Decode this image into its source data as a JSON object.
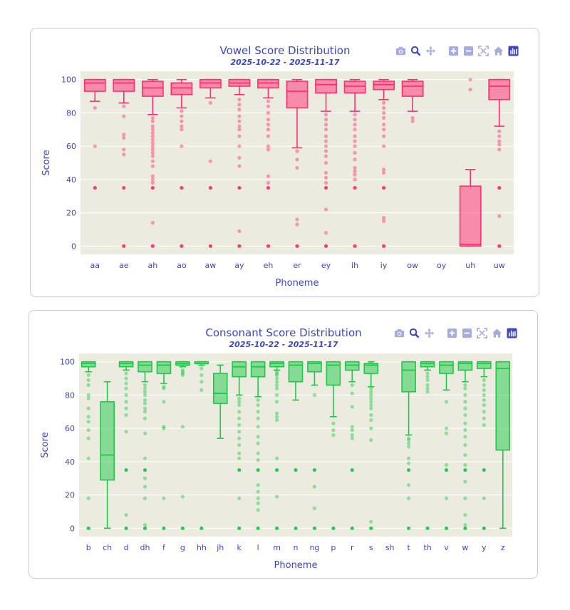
{
  "colors": {
    "vowel": "#ff2e73",
    "consonant": "#1ec94a",
    "text": "#3e46c2",
    "plot_bg": "#ecebdf",
    "grid": "#ffffff",
    "card_border": "#c9c6ee"
  },
  "modebar": {
    "icons": [
      "camera-icon",
      "zoom-icon",
      "pan-icon",
      "zoom-in-icon",
      "zoom-out-icon",
      "autoscale-icon",
      "home-icon",
      "plotly-logo-icon"
    ]
  },
  "vowel_chart": {
    "title": "Vowel Score Distribution",
    "subtitle": "2025-10-22 - 2025-11-17"
  },
  "consonant_chart": {
    "title": "Consonant Score Distribution",
    "subtitle": "2025-10-22 - 2025-11-17"
  },
  "chart_data": [
    {
      "type": "box",
      "title": "Vowel Score Distribution",
      "subtitle": "2025-10-22 - 2025-11-17",
      "xlabel": "Phoneme",
      "ylabel": "Score",
      "ylim": [
        -5,
        105
      ],
      "yticks": [
        0,
        20,
        40,
        60,
        80,
        100
      ],
      "grid": true,
      "color": "#ff2e73",
      "categories": [
        "aa",
        "ae",
        "ah",
        "ao",
        "aw",
        "ay",
        "eh",
        "er",
        "ey",
        "ih",
        "iy",
        "ow",
        "oy",
        "uh",
        "uw"
      ],
      "boxes": [
        {
          "x": "aa",
          "min": 87,
          "q1": 93,
          "median": 98,
          "q3": 100,
          "max": 100,
          "outliers": [
            83,
            60,
            35
          ]
        },
        {
          "x": "ae",
          "min": 86,
          "q1": 93,
          "median": 98,
          "q3": 100,
          "max": 100,
          "outliers": [
            84,
            78,
            67,
            65,
            58,
            55,
            35,
            0
          ]
        },
        {
          "x": "ah",
          "min": 79,
          "q1": 90,
          "median": 95,
          "q3": 99,
          "max": 100,
          "outliers": [
            77,
            75,
            72,
            70,
            68,
            66,
            64,
            62,
            60,
            58,
            56,
            54,
            51,
            48,
            42,
            40,
            38,
            35,
            14,
            0
          ]
        },
        {
          "x": "ao",
          "min": 83,
          "q1": 91,
          "median": 95,
          "q3": 98,
          "max": 100,
          "outliers": [
            81,
            78,
            75,
            72,
            70,
            60,
            35,
            0
          ]
        },
        {
          "x": "aw",
          "min": 89,
          "q1": 95,
          "median": 98,
          "q3": 100,
          "max": 100,
          "outliers": [
            86,
            51,
            35,
            0
          ]
        },
        {
          "x": "ay",
          "min": 91,
          "q1": 96,
          "median": 98,
          "q3": 100,
          "max": 100,
          "outliers": [
            88,
            85,
            82,
            78,
            75,
            72,
            70,
            66,
            60,
            53,
            48,
            35,
            9,
            0
          ]
        },
        {
          "x": "eh",
          "min": 89,
          "q1": 95,
          "median": 98,
          "q3": 100,
          "max": 100,
          "outliers": [
            87,
            84,
            80,
            76,
            73,
            70,
            66,
            60,
            58,
            42,
            38,
            35,
            0
          ]
        },
        {
          "x": "er",
          "min": 59,
          "q1": 83,
          "median": 93,
          "q3": 99,
          "max": 100,
          "outliers": [
            57,
            52,
            47,
            16,
            13,
            0
          ]
        },
        {
          "x": "ey",
          "min": 81,
          "q1": 92,
          "median": 97,
          "q3": 100,
          "max": 100,
          "outliers": [
            79,
            76,
            73,
            70,
            66,
            63,
            60,
            57,
            54,
            50,
            44,
            41,
            38,
            35,
            22,
            8,
            0
          ]
        },
        {
          "x": "ih",
          "min": 81,
          "q1": 92,
          "median": 96,
          "q3": 99,
          "max": 100,
          "outliers": [
            79,
            76,
            73,
            70,
            66,
            63,
            60,
            56,
            52,
            47,
            45,
            43,
            40,
            35,
            0
          ]
        },
        {
          "x": "iy",
          "min": 88,
          "q1": 94,
          "median": 97,
          "q3": 99,
          "max": 100,
          "outliers": [
            86,
            83,
            80,
            77,
            73,
            70,
            66,
            60,
            46,
            44,
            35,
            17,
            15,
            0
          ]
        },
        {
          "x": "ow",
          "min": 81,
          "q1": 90,
          "median": 96,
          "q3": 99,
          "max": 100,
          "outliers": [
            77,
            75
          ]
        },
        {
          "x": "oy",
          "min": null,
          "q1": null,
          "median": null,
          "q3": null,
          "max": null,
          "outliers": []
        },
        {
          "x": "uh",
          "min": 0,
          "q1": 0,
          "median": 1,
          "q3": 36,
          "max": 46,
          "outliers": [
            100,
            94
          ]
        },
        {
          "x": "uw",
          "min": 72,
          "q1": 88,
          "median": 96,
          "q3": 100,
          "max": 100,
          "outliers": [
            69,
            66,
            63,
            61,
            58,
            35,
            18,
            0
          ]
        }
      ]
    },
    {
      "type": "box",
      "title": "Consonant Score Distribution",
      "subtitle": "2025-10-22 - 2025-11-17",
      "xlabel": "Phoneme",
      "ylabel": "Score",
      "ylim": [
        -5,
        105
      ],
      "yticks": [
        0,
        20,
        40,
        60,
        80,
        100
      ],
      "grid": true,
      "color": "#1ec94a",
      "categories": [
        "b",
        "ch",
        "d",
        "dh",
        "f",
        "g",
        "hh",
        "jh",
        "k",
        "l",
        "m",
        "n",
        "ng",
        "p",
        "r",
        "s",
        "sh",
        "t",
        "th",
        "v",
        "w",
        "y",
        "z"
      ],
      "boxes": [
        {
          "x": "b",
          "min": 94,
          "q1": 97,
          "median": 99,
          "q3": 100,
          "max": 100,
          "outliers": [
            92,
            89,
            86,
            80,
            78,
            72,
            67,
            64,
            59,
            54,
            42,
            18,
            0
          ]
        },
        {
          "x": "ch",
          "min": 0,
          "q1": 29,
          "median": 44,
          "q3": 76,
          "max": 88,
          "outliers": []
        },
        {
          "x": "d",
          "min": 95,
          "q1": 97,
          "median": 99,
          "q3": 100,
          "max": 100,
          "outliers": [
            93,
            90,
            87,
            84,
            80,
            76,
            72,
            68,
            58,
            35,
            8,
            0
          ]
        },
        {
          "x": "dh",
          "min": 88,
          "q1": 94,
          "median": 98,
          "q3": 100,
          "max": 100,
          "outliers": [
            86,
            84,
            82,
            80,
            77,
            75,
            72,
            70,
            66,
            57,
            42,
            35,
            30,
            25,
            18,
            2,
            0
          ]
        },
        {
          "x": "f",
          "min": 87,
          "q1": 93,
          "median": 98,
          "q3": 100,
          "max": 100,
          "outliers": [
            85,
            84,
            76,
            61,
            60,
            18,
            0
          ]
        },
        {
          "x": "g",
          "min": 97,
          "q1": 98,
          "median": 99,
          "q3": 100,
          "max": 100,
          "outliers": [
            95,
            94,
            93,
            92,
            61,
            19,
            0
          ]
        },
        {
          "x": "hh",
          "min": 98,
          "q1": 99,
          "median": 99,
          "q3": 100,
          "max": 100,
          "outliers": [
            96,
            92,
            88,
            83,
            0
          ]
        },
        {
          "x": "jh",
          "min": 54,
          "q1": 75,
          "median": 81,
          "q3": 93,
          "max": 98,
          "outliers": []
        },
        {
          "x": "k",
          "min": 80,
          "q1": 91,
          "median": 97,
          "q3": 100,
          "max": 100,
          "outliers": [
            78,
            76,
            74,
            70,
            66,
            62,
            58,
            54,
            50,
            45,
            42,
            35,
            18,
            0
          ]
        },
        {
          "x": "l",
          "min": 79,
          "q1": 91,
          "median": 97,
          "q3": 100,
          "max": 100,
          "outliers": [
            77,
            74,
            70,
            66,
            61,
            55,
            51,
            45,
            41,
            35,
            26,
            22,
            18,
            15,
            11,
            0
          ]
        },
        {
          "x": "m",
          "min": 95,
          "q1": 97,
          "median": 99,
          "q3": 100,
          "max": 100,
          "outliers": [
            94,
            93,
            92,
            90,
            88,
            86,
            84,
            80,
            76,
            69,
            67,
            65,
            42,
            35,
            19,
            0
          ]
        },
        {
          "x": "n",
          "min": 77,
          "q1": 88,
          "median": 98,
          "q3": 100,
          "max": 100,
          "outliers": [
            35,
            0
          ]
        },
        {
          "x": "ng",
          "min": 86,
          "q1": 94,
          "median": 99,
          "q3": 100,
          "max": 100,
          "outliers": [
            80,
            35,
            25,
            12,
            0
          ]
        },
        {
          "x": "p",
          "min": 67,
          "q1": 86,
          "median": 98,
          "q3": 100,
          "max": 100,
          "outliers": [
            63,
            59,
            56,
            0
          ]
        },
        {
          "x": "r",
          "min": 88,
          "q1": 95,
          "median": 98,
          "q3": 100,
          "max": 100,
          "outliers": [
            86,
            81,
            73,
            61,
            59,
            56,
            54,
            35,
            0
          ]
        },
        {
          "x": "s",
          "min": 85,
          "q1": 93,
          "median": 98,
          "q3": 99,
          "max": 100,
          "outliers": [
            84,
            82,
            80,
            78,
            76,
            74,
            72,
            68,
            65,
            60,
            53,
            4,
            0
          ]
        },
        {
          "x": "sh",
          "min": null,
          "q1": null,
          "median": null,
          "q3": null,
          "max": null,
          "outliers": []
        },
        {
          "x": "t",
          "min": 56,
          "q1": 82,
          "median": 95,
          "q3": 100,
          "max": 100,
          "outliers": [
            54,
            53,
            51,
            49,
            42,
            39,
            35,
            26,
            18,
            0
          ]
        },
        {
          "x": "th",
          "min": 95,
          "q1": 97,
          "median": 99,
          "q3": 100,
          "max": 100,
          "outliers": [
            93,
            91,
            89,
            86,
            84,
            82,
            0
          ]
        },
        {
          "x": "v",
          "min": 83,
          "q1": 93,
          "median": 98,
          "q3": 100,
          "max": 100,
          "outliers": [
            76,
            60,
            57,
            38,
            35,
            18,
            0
          ]
        },
        {
          "x": "w",
          "min": 88,
          "q1": 95,
          "median": 99,
          "q3": 100,
          "max": 100,
          "outliers": [
            86,
            84,
            80,
            76,
            72,
            68,
            63,
            59,
            55,
            50,
            44,
            38,
            35,
            28,
            18,
            8,
            2,
            0
          ]
        },
        {
          "x": "y",
          "min": 91,
          "q1": 96,
          "median": 99,
          "q3": 100,
          "max": 100,
          "outliers": [
            89,
            86,
            83,
            80,
            77,
            74,
            70,
            66,
            62,
            35,
            18,
            0
          ]
        },
        {
          "x": "z",
          "min": 0,
          "q1": 47,
          "median": 96,
          "q3": 100,
          "max": 100,
          "outliers": []
        }
      ]
    }
  ]
}
